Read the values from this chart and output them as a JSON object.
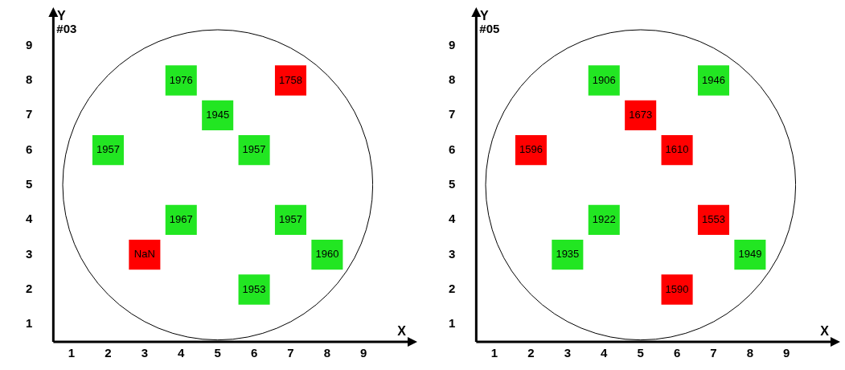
{
  "chart_data": [
    {
      "type": "heatmap",
      "data_labels": true,
      "title": "#03",
      "xlabel": "X",
      "ylabel": "Y",
      "categories": [
        "1",
        "2",
        "3",
        "4",
        "5",
        "6",
        "7",
        "8",
        "9"
      ],
      "y_categories": [
        "9",
        "8",
        "7",
        "6",
        "5",
        "4",
        "3",
        "2",
        "1"
      ],
      "cells": [
        [
          null,
          null,
          null,
          null,
          null,
          null,
          null,
          null,
          null
        ],
        [
          null,
          null,
          null,
          1976,
          null,
          null,
          1758,
          null,
          null
        ],
        [
          null,
          null,
          null,
          null,
          1945,
          null,
          null,
          null,
          null
        ],
        [
          null,
          1957,
          null,
          null,
          null,
          1957,
          null,
          null,
          null
        ],
        [
          null,
          null,
          null,
          null,
          null,
          null,
          null,
          null,
          null
        ],
        [
          null,
          null,
          null,
          1967,
          null,
          null,
          1957,
          null,
          null
        ],
        [
          null,
          null,
          null,
          null,
          null,
          null,
          null,
          1960,
          null
        ],
        [
          null,
          null,
          null,
          null,
          null,
          1953,
          null,
          null,
          null
        ],
        [
          null,
          null,
          null,
          null,
          null,
          null,
          null,
          null,
          null
        ]
      ],
      "annotations": [
        {
          "text": "NaN",
          "x": "3",
          "y": "3"
        }
      ],
      "colors": [
        [
          null,
          null,
          null,
          null,
          null,
          null,
          null,
          null,
          null
        ],
        [
          null,
          null,
          null,
          "#22e622",
          null,
          null,
          "#ff0000",
          null,
          null
        ],
        [
          null,
          null,
          null,
          null,
          "#22e622",
          null,
          null,
          null,
          null
        ],
        [
          null,
          "#22e622",
          null,
          null,
          null,
          "#22e622",
          null,
          null,
          null
        ],
        [
          null,
          null,
          null,
          null,
          null,
          null,
          null,
          null,
          null
        ],
        [
          null,
          null,
          null,
          "#22e622",
          null,
          null,
          "#22e622",
          null,
          null
        ],
        [
          null,
          null,
          "#ff0000",
          null,
          null,
          null,
          null,
          "#22e622",
          null
        ],
        [
          null,
          null,
          null,
          null,
          null,
          "#22e622",
          null,
          null,
          null
        ],
        [
          null,
          null,
          null,
          null,
          null,
          null,
          null,
          null,
          null
        ]
      ]
    },
    {
      "type": "heatmap",
      "data_labels": true,
      "title": "#05",
      "xlabel": "X",
      "ylabel": "Y",
      "categories": [
        "1",
        "2",
        "3",
        "4",
        "5",
        "6",
        "7",
        "8",
        "9"
      ],
      "y_categories": [
        "9",
        "8",
        "7",
        "6",
        "5",
        "4",
        "3",
        "2",
        "1"
      ],
      "cells": [
        [
          null,
          null,
          null,
          null,
          null,
          null,
          null,
          null,
          null
        ],
        [
          null,
          null,
          null,
          1906,
          null,
          null,
          1946,
          null,
          null
        ],
        [
          null,
          null,
          null,
          null,
          1673,
          null,
          null,
          null,
          null
        ],
        [
          null,
          1596,
          null,
          null,
          null,
          1610,
          null,
          null,
          null
        ],
        [
          null,
          null,
          null,
          null,
          null,
          null,
          null,
          null,
          null
        ],
        [
          null,
          null,
          null,
          1922,
          null,
          null,
          1553,
          null,
          null
        ],
        [
          null,
          null,
          1935,
          null,
          null,
          null,
          null,
          1949,
          null
        ],
        [
          null,
          null,
          null,
          null,
          null,
          1590,
          null,
          null,
          null
        ],
        [
          null,
          null,
          null,
          null,
          null,
          null,
          null,
          null,
          null
        ]
      ],
      "colors": [
        [
          null,
          null,
          null,
          null,
          null,
          null,
          null,
          null,
          null
        ],
        [
          null,
          null,
          null,
          "#22e622",
          null,
          null,
          "#22e622",
          null,
          null
        ],
        [
          null,
          null,
          null,
          null,
          "#ff0000",
          null,
          null,
          null,
          null
        ],
        [
          null,
          "#ff0000",
          null,
          null,
          null,
          "#ff0000",
          null,
          null,
          null
        ],
        [
          null,
          null,
          null,
          null,
          null,
          null,
          null,
          null,
          null
        ],
        [
          null,
          null,
          null,
          "#22e622",
          null,
          null,
          "#ff0000",
          null,
          null
        ],
        [
          null,
          null,
          "#22e622",
          null,
          null,
          null,
          null,
          "#22e622",
          null
        ],
        [
          null,
          null,
          null,
          null,
          null,
          "#ff0000",
          null,
          null,
          null
        ],
        [
          null,
          null,
          null,
          null,
          null,
          null,
          null,
          null,
          null
        ]
      ]
    }
  ]
}
